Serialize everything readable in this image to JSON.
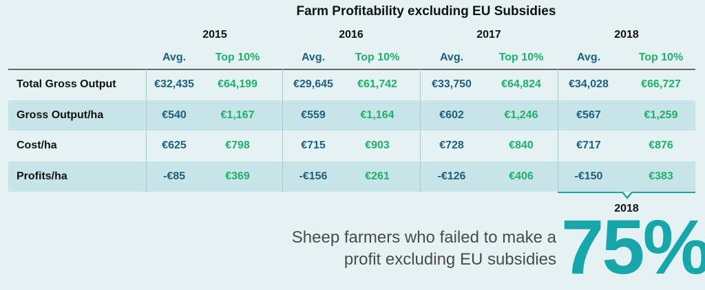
{
  "chart_data": {
    "type": "table",
    "title": "Farm Profitability excluding EU Subsidies",
    "years": [
      "2015",
      "2016",
      "2017",
      "2018"
    ],
    "subheaders": [
      "Avg.",
      "Top 10%"
    ],
    "rows": [
      {
        "label": "Total Gross Output",
        "values": [
          "€32,435",
          "€64,199",
          "€29,645",
          "€61,742",
          "€33,750",
          "€64,824",
          "€34,028",
          "€66,727"
        ]
      },
      {
        "label": "Gross Output/ha",
        "values": [
          "€540",
          "€1,167",
          "€559",
          "€1,164",
          "€602",
          "€1,246",
          "€567",
          "€1,259"
        ]
      },
      {
        "label": "Cost/ha",
        "values": [
          "€625",
          "€798",
          "€715",
          "€903",
          "€728",
          "€840",
          "€717",
          "€876"
        ]
      },
      {
        "label": "Profits/ha",
        "values": [
          "-€85",
          "€369",
          "-€156",
          "€261",
          "-€126",
          "€406",
          "-€150",
          "€383"
        ]
      }
    ],
    "highlighted_year": "2018"
  },
  "callout": {
    "year": "2018",
    "line1": "Sheep farmers who failed to make a",
    "line2": "profit excluding EU subsidies",
    "value": "75%"
  },
  "colors": {
    "avg": "#1d5f7d",
    "top10": "#1cb06a",
    "accent": "#17a7ab",
    "background": "#e4f2f3",
    "shaded_row": "#c7e5e8"
  }
}
